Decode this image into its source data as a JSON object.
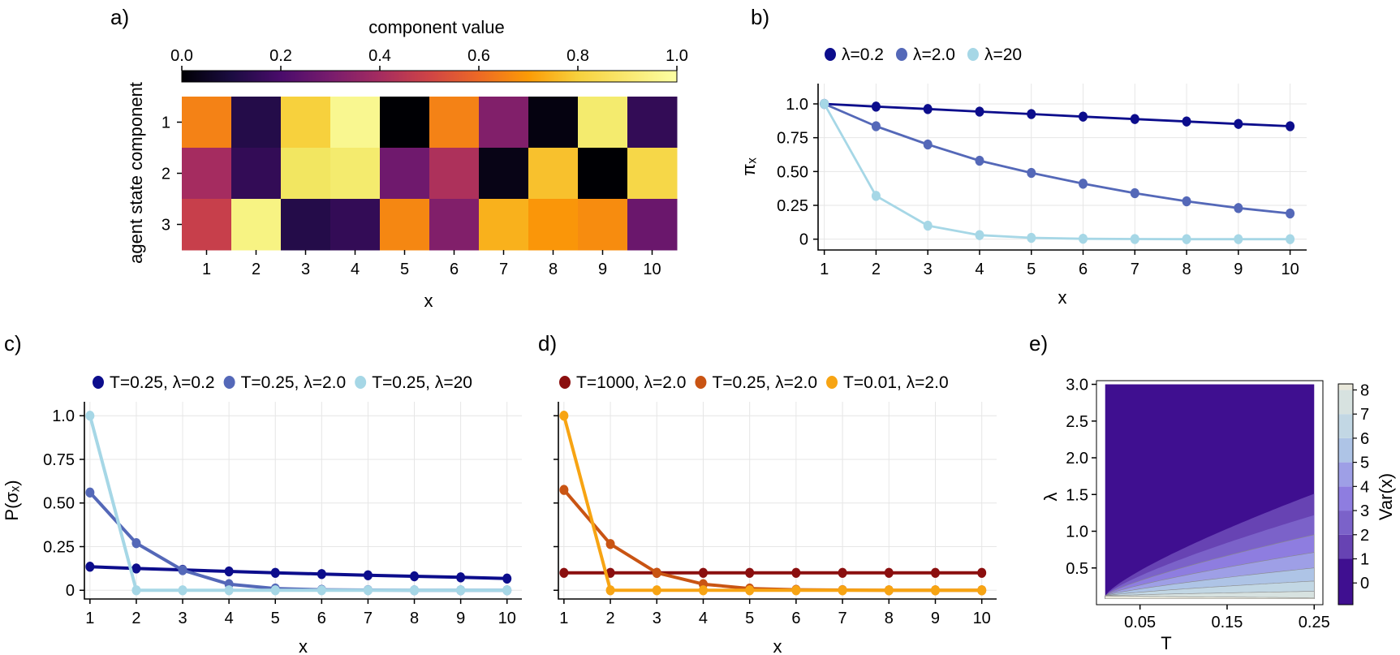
{
  "chart_data": [
    {
      "panel": "a)",
      "type": "heatmap",
      "colorbar_label": "component value",
      "colorbar_ticks": [
        "0.0",
        "0.2",
        "0.4",
        "0.6",
        "0.8",
        "1.0"
      ],
      "xlabel": "x",
      "ylabel": "agent state component",
      "x_ticks": [
        "1",
        "2",
        "3",
        "4",
        "5",
        "6",
        "7",
        "8",
        "9",
        "10"
      ],
      "y_ticks": [
        "1",
        "2",
        "3"
      ],
      "values": [
        [
          0.65,
          0.12,
          0.8,
          0.97,
          0.0,
          0.65,
          0.32,
          0.02,
          0.92,
          0.15
        ],
        [
          0.4,
          0.15,
          0.9,
          0.92,
          0.28,
          0.42,
          0.03,
          0.77,
          0.0,
          0.83
        ],
        [
          0.48,
          0.95,
          0.12,
          0.15,
          0.66,
          0.32,
          0.74,
          0.69,
          0.67,
          0.27
        ]
      ]
    },
    {
      "panel": "b)",
      "type": "line",
      "xlabel": "x",
      "ylabel": "πₓ",
      "x": [
        1,
        2,
        3,
        4,
        5,
        6,
        7,
        8,
        9,
        10
      ],
      "ylim": [
        -0.08,
        1.15
      ],
      "y_ticks": [
        0,
        0.25,
        0.5,
        0.75,
        1.0
      ],
      "y_tick_labels": [
        "0",
        "0.25",
        "0.50",
        "0.75",
        "1.0"
      ],
      "series": [
        {
          "name": "λ=0.2",
          "color": "#0c0d8c",
          "values": [
            1.0,
            0.98,
            0.962,
            0.943,
            0.925,
            0.906,
            0.888,
            0.87,
            0.852,
            0.835
          ]
        },
        {
          "name": "λ=2.0",
          "color": "#5468b8",
          "values": [
            1.0,
            0.835,
            0.7,
            0.58,
            0.49,
            0.41,
            0.34,
            0.28,
            0.23,
            0.19
          ]
        },
        {
          "name": "λ=20",
          "color": "#a6d7e6",
          "values": [
            1.0,
            0.32,
            0.1,
            0.03,
            0.01,
            0.003,
            0.001,
            0.0,
            0.0,
            0.0
          ]
        }
      ]
    },
    {
      "panel": "c)",
      "type": "line",
      "xlabel": "x",
      "ylabel": "P(σₓ)",
      "x": [
        1,
        2,
        3,
        4,
        5,
        6,
        7,
        8,
        9,
        10
      ],
      "ylim": [
        -0.05,
        1.08
      ],
      "y_ticks": [
        0,
        0.25,
        0.5,
        0.75,
        1.0
      ],
      "y_tick_labels": [
        "0",
        "0.25",
        "0.50",
        "0.75",
        "1.0"
      ],
      "series": [
        {
          "name": "T=0.25, λ=0.2",
          "color": "#0c0d8c",
          "values": [
            0.135,
            0.125,
            0.117,
            0.108,
            0.1,
            0.093,
            0.086,
            0.08,
            0.074,
            0.067
          ]
        },
        {
          "name": "T=0.25, λ=2.0",
          "color": "#5468b8",
          "values": [
            0.56,
            0.27,
            0.115,
            0.035,
            0.01,
            0.003,
            0.001,
            0.0,
            0.0,
            0.0
          ]
        },
        {
          "name": "T=0.25, λ=20",
          "color": "#a6d7e6",
          "values": [
            1.0,
            0.0,
            0.0,
            0.0,
            0.0,
            0.0,
            0.0,
            0.0,
            0.0,
            0.0
          ]
        }
      ]
    },
    {
      "panel": "d)",
      "type": "line",
      "xlabel": "x",
      "ylabel": "",
      "x": [
        1,
        2,
        3,
        4,
        5,
        6,
        7,
        8,
        9,
        10
      ],
      "ylim": [
        -0.05,
        1.08
      ],
      "y_ticks": [
        0,
        0.25,
        0.5,
        0.75,
        1.0
      ],
      "y_tick_labels": [],
      "series": [
        {
          "name": "T=1000, λ=2.0",
          "color": "#8b0f0f",
          "values": [
            0.1,
            0.1,
            0.1,
            0.1,
            0.1,
            0.1,
            0.1,
            0.1,
            0.1,
            0.1
          ]
        },
        {
          "name": "T=0.25, λ=2.0",
          "color": "#c95413",
          "values": [
            0.575,
            0.265,
            0.1,
            0.035,
            0.01,
            0.003,
            0.001,
            0.0,
            0.0,
            0.0
          ]
        },
        {
          "name": "T=0.01, λ=2.0",
          "color": "#f7a413",
          "values": [
            1.0,
            0.0,
            0.0,
            0.0,
            0.0,
            0.0,
            0.0,
            0.0,
            0.0,
            0.0
          ]
        }
      ]
    },
    {
      "panel": "e)",
      "type": "contour",
      "xlabel": "T",
      "ylabel": "λ",
      "colorbar_label": "Var(x)",
      "xlim": [
        0.0,
        0.26
      ],
      "ylim": [
        0.0,
        3.05
      ],
      "x_ticks": [
        0.05,
        0.15,
        0.25
      ],
      "x_tick_labels": [
        "0.05",
        "0.15",
        "0.25"
      ],
      "y_ticks": [
        0.5,
        1.0,
        1.5,
        2.0,
        2.5,
        3.0
      ],
      "y_tick_labels": [
        "0.5",
        "1.0",
        "1.5",
        "2.0",
        "2.5",
        "3.0"
      ],
      "colorbar_ticks": [
        "0",
        "1",
        "2",
        "3",
        "4",
        "5",
        "6",
        "7",
        "8"
      ],
      "levels": [
        0,
        1,
        2,
        3,
        4,
        5,
        6,
        7,
        8,
        8.25
      ],
      "level_colors": [
        "#3f0f90",
        "#6743b3",
        "#7b62c9",
        "#8e7de0",
        "#9e9fe6",
        "#aec4e6",
        "#c2d7e4",
        "#d7e2e0",
        "#e9e8db",
        "#f6f1e6"
      ]
    }
  ]
}
